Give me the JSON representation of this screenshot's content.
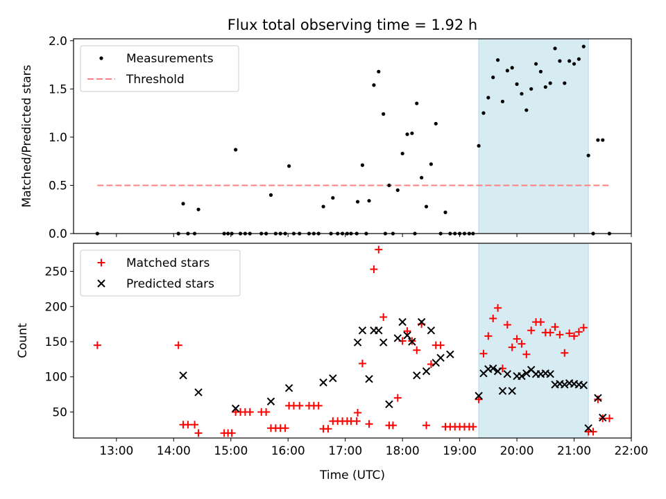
{
  "title": "Flux total observing time = 1.92 h",
  "colors": {
    "measurement": "#000000",
    "threshold": "#ff7f7f",
    "matched": "#ff0000",
    "predicted": "#000000",
    "highlight": "#add8e6"
  },
  "chart_data": [
    {
      "type": "scatter",
      "xlabel": "",
      "ylabel": "Matched/Predicted stars",
      "ylim": [
        0,
        2.02
      ],
      "xlim": [
        "12:15",
        "22:00"
      ],
      "yticks": [
        "0.0",
        "0.5",
        "1.0",
        "1.5",
        "2.0"
      ],
      "grid": false,
      "legend_position": "top-left",
      "highlight_span": [
        "19:20",
        "21:15"
      ],
      "threshold": {
        "name": "Threshold",
        "y": 0.5,
        "x": [
          "12:40",
          "21:37"
        ]
      },
      "series": [
        {
          "name": "Measurements",
          "points": [
            [
              "12:40",
              0.0
            ],
            [
              "14:05",
              0.0
            ],
            [
              "14:10",
              0.31
            ],
            [
              "14:15",
              0.0
            ],
            [
              "14:22",
              0.0
            ],
            [
              "14:26",
              0.25
            ],
            [
              "14:53",
              0.0
            ],
            [
              "14:57",
              0.0
            ],
            [
              "15:01",
              0.0
            ],
            [
              "15:05",
              0.87
            ],
            [
              "15:10",
              0.0
            ],
            [
              "15:15",
              0.0
            ],
            [
              "15:20",
              0.0
            ],
            [
              "15:32",
              0.0
            ],
            [
              "15:37",
              0.0
            ],
            [
              "15:42",
              0.4
            ],
            [
              "15:47",
              0.0
            ],
            [
              "15:52",
              0.0
            ],
            [
              "15:57",
              0.0
            ],
            [
              "16:01",
              0.7
            ],
            [
              "16:06",
              0.0
            ],
            [
              "16:12",
              0.0
            ],
            [
              "16:22",
              0.0
            ],
            [
              "16:27",
              0.0
            ],
            [
              "16:32",
              0.0
            ],
            [
              "16:37",
              0.28
            ],
            [
              "16:45",
              0.0
            ],
            [
              "16:47",
              0.37
            ],
            [
              "16:52",
              0.0
            ],
            [
              "16:57",
              0.0
            ],
            [
              "17:02",
              0.0
            ],
            [
              "17:06",
              0.0
            ],
            [
              "17:12",
              0.0
            ],
            [
              "17:13",
              0.33
            ],
            [
              "17:18",
              0.71
            ],
            [
              "17:22",
              0.0
            ],
            [
              "17:25",
              0.34
            ],
            [
              "17:30",
              1.54
            ],
            [
              "17:35",
              1.68
            ],
            [
              "17:40",
              1.24
            ],
            [
              "17:42",
              0.0
            ],
            [
              "17:46",
              0.5
            ],
            [
              "17:50",
              0.0
            ],
            [
              "17:55",
              0.45
            ],
            [
              "18:00",
              0.83
            ],
            [
              "18:05",
              1.03
            ],
            [
              "18:10",
              1.04
            ],
            [
              "18:13",
              0.0
            ],
            [
              "18:15",
              1.35
            ],
            [
              "18:20",
              0.58
            ],
            [
              "18:25",
              0.28
            ],
            [
              "18:30",
              0.72
            ],
            [
              "18:35",
              1.14
            ],
            [
              "18:40",
              0.0
            ],
            [
              "18:45",
              0.22
            ],
            [
              "18:50",
              0.0
            ],
            [
              "18:55",
              0.0
            ],
            [
              "19:00",
              0.0
            ],
            [
              "19:05",
              0.0
            ],
            [
              "19:10",
              0.0
            ],
            [
              "19:14",
              0.0
            ],
            [
              "19:20",
              0.91
            ],
            [
              "19:25",
              1.25
            ],
            [
              "19:30",
              1.41
            ],
            [
              "19:35",
              1.62
            ],
            [
              "19:40",
              1.8
            ],
            [
              "19:45",
              1.37
            ],
            [
              "19:50",
              1.69
            ],
            [
              "19:55",
              1.72
            ],
            [
              "20:00",
              1.55
            ],
            [
              "20:05",
              1.45
            ],
            [
              "20:10",
              1.28
            ],
            [
              "20:15",
              1.5
            ],
            [
              "20:20",
              1.76
            ],
            [
              "20:25",
              1.68
            ],
            [
              "20:30",
              1.52
            ],
            [
              "20:35",
              1.56
            ],
            [
              "20:40",
              1.92
            ],
            [
              "20:45",
              1.79
            ],
            [
              "20:50",
              1.56
            ],
            [
              "20:55",
              1.79
            ],
            [
              "21:00",
              1.76
            ],
            [
              "21:05",
              1.81
            ],
            [
              "21:10",
              1.94
            ],
            [
              "21:15",
              0.81
            ],
            [
              "21:20",
              0.0
            ],
            [
              "21:25",
              0.97
            ],
            [
              "21:30",
              0.97
            ],
            [
              "21:37",
              0.0
            ]
          ]
        }
      ]
    },
    {
      "type": "scatter",
      "xlabel": "Time (UTC)",
      "ylabel": "Count",
      "ylim": [
        13,
        290
      ],
      "xlim": [
        "12:15",
        "22:00"
      ],
      "yticks": [
        "50",
        "100",
        "150",
        "200",
        "250"
      ],
      "xticks": [
        "13:00",
        "14:00",
        "15:00",
        "16:00",
        "17:00",
        "18:00",
        "19:00",
        "20:00",
        "21:00",
        "22:00"
      ],
      "grid": false,
      "legend_position": "top-left",
      "highlight_span": [
        "19:20",
        "21:15"
      ],
      "series": [
        {
          "name": "Matched stars",
          "marker": "plus",
          "points": [
            [
              "12:40",
              145
            ],
            [
              "14:05",
              145
            ],
            [
              "14:10",
              32
            ],
            [
              "14:15",
              32
            ],
            [
              "14:22",
              32
            ],
            [
              "14:26",
              20
            ],
            [
              "14:53",
              20
            ],
            [
              "14:57",
              20
            ],
            [
              "15:01",
              20
            ],
            [
              "15:05",
              50
            ],
            [
              "15:10",
              50
            ],
            [
              "15:15",
              50
            ],
            [
              "15:20",
              50
            ],
            [
              "15:32",
              50
            ],
            [
              "15:37",
              50
            ],
            [
              "15:42",
              27
            ],
            [
              "15:47",
              27
            ],
            [
              "15:52",
              27
            ],
            [
              "15:57",
              27
            ],
            [
              "16:01",
              59
            ],
            [
              "16:06",
              59
            ],
            [
              "16:12",
              59
            ],
            [
              "16:22",
              59
            ],
            [
              "16:27",
              59
            ],
            [
              "16:32",
              59
            ],
            [
              "16:37",
              26
            ],
            [
              "16:42",
              26
            ],
            [
              "16:47",
              37
            ],
            [
              "16:52",
              37
            ],
            [
              "16:57",
              37
            ],
            [
              "17:02",
              37
            ],
            [
              "17:06",
              37
            ],
            [
              "17:12",
              37
            ],
            [
              "17:13",
              49
            ],
            [
              "17:18",
              119
            ],
            [
              "17:25",
              33
            ],
            [
              "17:30",
              253
            ],
            [
              "17:35",
              281
            ],
            [
              "17:40",
              185
            ],
            [
              "17:46",
              31
            ],
            [
              "17:50",
              31
            ],
            [
              "17:55",
              70
            ],
            [
              "18:00",
              151
            ],
            [
              "18:05",
              165
            ],
            [
              "18:10",
              151
            ],
            [
              "18:15",
              138
            ],
            [
              "18:20",
              175
            ],
            [
              "18:25",
              31
            ],
            [
              "18:30",
              118
            ],
            [
              "18:35",
              145
            ],
            [
              "18:40",
              145
            ],
            [
              "18:45",
              29
            ],
            [
              "18:50",
              29
            ],
            [
              "18:55",
              29
            ],
            [
              "19:00",
              29
            ],
            [
              "19:05",
              29
            ],
            [
              "19:10",
              29
            ],
            [
              "19:14",
              29
            ],
            [
              "19:20",
              68
            ],
            [
              "19:25",
              133
            ],
            [
              "19:30",
              158
            ],
            [
              "19:35",
              183
            ],
            [
              "19:40",
              198
            ],
            [
              "19:45",
              112
            ],
            [
              "19:50",
              174
            ],
            [
              "19:55",
              142
            ],
            [
              "20:00",
              154
            ],
            [
              "20:05",
              147
            ],
            [
              "20:10",
              132
            ],
            [
              "20:15",
              166
            ],
            [
              "20:20",
              178
            ],
            [
              "20:25",
              178
            ],
            [
              "20:30",
              163
            ],
            [
              "20:35",
              163
            ],
            [
              "20:40",
              171
            ],
            [
              "20:45",
              160
            ],
            [
              "20:50",
              134
            ],
            [
              "20:55",
              162
            ],
            [
              "21:00",
              158
            ],
            [
              "21:05",
              164
            ],
            [
              "21:10",
              170
            ],
            [
              "21:15",
              22
            ],
            [
              "21:20",
              22
            ],
            [
              "21:25",
              68
            ],
            [
              "21:30",
              41
            ],
            [
              "21:37",
              41
            ]
          ]
        },
        {
          "name": "Predicted stars",
          "marker": "x",
          "points": [
            [
              "14:10",
              102
            ],
            [
              "14:26",
              78
            ],
            [
              "15:05",
              55
            ],
            [
              "15:42",
              65
            ],
            [
              "16:01",
              84
            ],
            [
              "16:37",
              92
            ],
            [
              "16:47",
              98
            ],
            [
              "17:13",
              149
            ],
            [
              "17:18",
              166
            ],
            [
              "17:25",
              97
            ],
            [
              "17:30",
              166
            ],
            [
              "17:35",
              166
            ],
            [
              "17:40",
              149
            ],
            [
              "17:46",
              61
            ],
            [
              "17:55",
              155
            ],
            [
              "18:00",
              178
            ],
            [
              "18:05",
              159
            ],
            [
              "18:10",
              150
            ],
            [
              "18:15",
              102
            ],
            [
              "18:20",
              178
            ],
            [
              "18:25",
              108
            ],
            [
              "18:30",
              166
            ],
            [
              "18:35",
              120
            ],
            [
              "18:40",
              127
            ],
            [
              "18:50",
              132
            ],
            [
              "19:20",
              73
            ],
            [
              "19:25",
              105
            ],
            [
              "19:30",
              111
            ],
            [
              "19:35",
              112
            ],
            [
              "19:40",
              108
            ],
            [
              "19:45",
              80
            ],
            [
              "19:50",
              104
            ],
            [
              "19:55",
              80
            ],
            [
              "20:00",
              101
            ],
            [
              "20:05",
              101
            ],
            [
              "20:10",
              105
            ],
            [
              "20:15",
              110
            ],
            [
              "20:20",
              104
            ],
            [
              "20:25",
              104
            ],
            [
              "20:30",
              105
            ],
            [
              "20:35",
              104
            ],
            [
              "20:40",
              89
            ],
            [
              "20:45",
              90
            ],
            [
              "20:50",
              89
            ],
            [
              "20:55",
              91
            ],
            [
              "21:00",
              90
            ],
            [
              "21:05",
              89
            ],
            [
              "21:10",
              88
            ],
            [
              "21:15",
              27
            ],
            [
              "21:25",
              70
            ],
            [
              "21:30",
              42
            ]
          ]
        }
      ]
    }
  ]
}
